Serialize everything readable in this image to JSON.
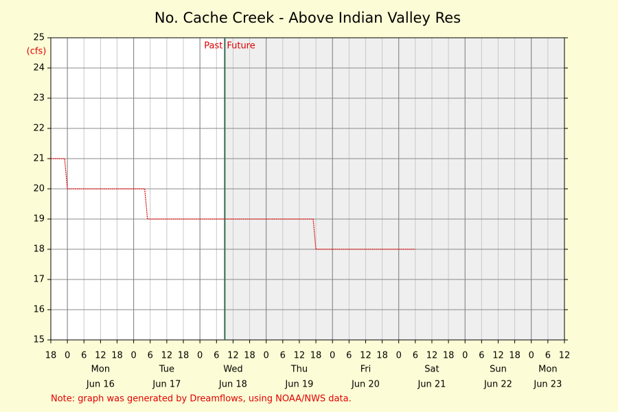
{
  "chart_data": {
    "type": "line",
    "title": "No. Cache Creek - Above Indian Valley Res",
    "y_label": "(cfs)",
    "x": [
      "Jun 15 18:00",
      "Jun 15 23:00",
      "Jun 16 00:00",
      "Jun 17 04:00",
      "Jun 17 05:00",
      "Jun 19 17:00",
      "Jun 19 18:00",
      "Jun 21 06:00"
    ],
    "values": [
      21,
      21,
      20,
      20,
      19,
      19,
      18,
      18
    ],
    "color": "#e00000",
    "xlim": [
      "Jun 15 18:00",
      "Jun 23 12:00"
    ],
    "ylim": [
      15,
      25
    ],
    "yticks": [
      15,
      16,
      17,
      18,
      19,
      20,
      21,
      22,
      23,
      24,
      25
    ],
    "xticks": [
      {
        "value": "Jun 15 18:00",
        "label": "18"
      },
      {
        "value": "Jun 16 00:00",
        "label": "0"
      },
      {
        "value": "Jun 16 06:00",
        "label": "6"
      },
      {
        "value": "Jun 16 12:00",
        "label": "12"
      },
      {
        "value": "Jun 16 18:00",
        "label": "18"
      },
      {
        "value": "Jun 17 00:00",
        "label": "0"
      },
      {
        "value": "Jun 17 06:00",
        "label": "6"
      },
      {
        "value": "Jun 17 12:00",
        "label": "12"
      },
      {
        "value": "Jun 17 18:00",
        "label": "18"
      },
      {
        "value": "Jun 18 00:00",
        "label": "0"
      },
      {
        "value": "Jun 18 06:00",
        "label": "6"
      },
      {
        "value": "Jun 18 12:00",
        "label": "12"
      },
      {
        "value": "Jun 18 18:00",
        "label": "18"
      },
      {
        "value": "Jun 19 00:00",
        "label": "0"
      },
      {
        "value": "Jun 19 06:00",
        "label": "6"
      },
      {
        "value": "Jun 19 12:00",
        "label": "12"
      },
      {
        "value": "Jun 19 18:00",
        "label": "18"
      },
      {
        "value": "Jun 20 00:00",
        "label": "0"
      },
      {
        "value": "Jun 20 06:00",
        "label": "6"
      },
      {
        "value": "Jun 20 12:00",
        "label": "12"
      },
      {
        "value": "Jun 20 18:00",
        "label": "18"
      },
      {
        "value": "Jun 21 00:00",
        "label": "0"
      },
      {
        "value": "Jun 21 06:00",
        "label": "6"
      },
      {
        "value": "Jun 21 12:00",
        "label": "12"
      },
      {
        "value": "Jun 21 18:00",
        "label": "18"
      },
      {
        "value": "Jun 22 00:00",
        "label": "0"
      },
      {
        "value": "Jun 22 06:00",
        "label": "6"
      },
      {
        "value": "Jun 22 12:00",
        "label": "12"
      },
      {
        "value": "Jun 22 18:00",
        "label": "18"
      },
      {
        "value": "Jun 23 00:00",
        "label": "0"
      },
      {
        "value": "Jun 23 06:00",
        "label": "6"
      },
      {
        "value": "Jun 23 12:00",
        "label": "12"
      }
    ],
    "day_labels": [
      {
        "value": "Jun 16 12:00",
        "weekday": "Mon",
        "date": "Jun 16"
      },
      {
        "value": "Jun 17 12:00",
        "weekday": "Tue",
        "date": "Jun 17"
      },
      {
        "value": "Jun 18 12:00",
        "weekday": "Wed",
        "date": "Jun 18"
      },
      {
        "value": "Jun 19 12:00",
        "weekday": "Thu",
        "date": "Jun 19"
      },
      {
        "value": "Jun 20 12:00",
        "weekday": "Fri",
        "date": "Jun 20"
      },
      {
        "value": "Jun 21 12:00",
        "weekday": "Sat",
        "date": "Jun 21"
      },
      {
        "value": "Jun 22 12:00",
        "weekday": "Sun",
        "date": "Jun 22"
      },
      {
        "value": "Jun 23 06:00",
        "weekday": "Mon",
        "date": "Jun 23"
      }
    ],
    "now": {
      "value": "Jun 18 09:00",
      "past_label": "Past",
      "future_label": "Future",
      "color": "#2e6b4e"
    },
    "future_shade": "#efefef",
    "grid": true,
    "note": "Note: graph was generated by Dreamflows, using NOAA/NWS data."
  }
}
